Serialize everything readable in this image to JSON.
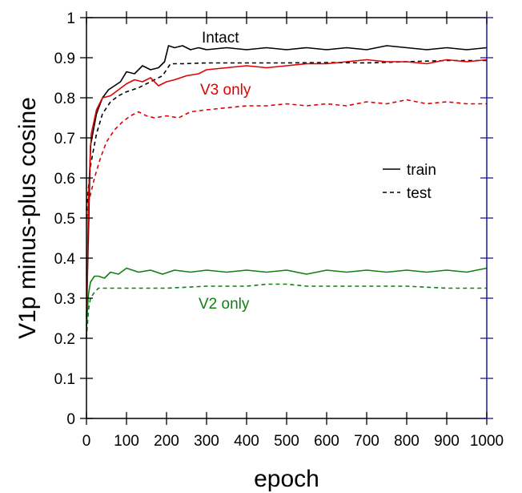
{
  "chart_data": {
    "type": "line",
    "xlabel": "epoch",
    "ylabel": "V1p minus-plus cosine",
    "xlim": [
      0,
      1000
    ],
    "ylim": [
      0,
      1
    ],
    "xticks": [
      "0",
      "100",
      "200",
      "300",
      "400",
      "500",
      "600",
      "700",
      "800",
      "900",
      "1000"
    ],
    "yticks": [
      "0",
      "0.1",
      "0.2",
      "0.3",
      "0.4",
      "0.5",
      "0.6",
      "0.7",
      "0.8",
      "0.9",
      "1"
    ],
    "grid": false,
    "legend": {
      "placement": "right",
      "entries": [
        {
          "label": "train",
          "style": "solid"
        },
        {
          "label": "test",
          "style": "dashed"
        }
      ]
    },
    "annotations": [
      {
        "text": "Intact",
        "color": "#000000"
      },
      {
        "text": "V3 only",
        "color": "#e00000"
      },
      {
        "text": "V2 only",
        "color": "#108010"
      }
    ],
    "series": [
      {
        "group": "Intact",
        "split": "train",
        "color": "#000000",
        "style": "solid",
        "x": [
          0,
          10,
          25,
          40,
          55,
          70,
          85,
          100,
          120,
          140,
          160,
          180,
          195,
          205,
          220,
          240,
          260,
          280,
          300,
          350,
          400,
          450,
          500,
          550,
          600,
          650,
          700,
          750,
          800,
          850,
          900,
          950,
          1000
        ],
        "y": [
          0.25,
          0.68,
          0.76,
          0.8,
          0.82,
          0.83,
          0.84,
          0.865,
          0.86,
          0.88,
          0.87,
          0.875,
          0.89,
          0.93,
          0.925,
          0.93,
          0.92,
          0.925,
          0.92,
          0.925,
          0.92,
          0.925,
          0.92,
          0.925,
          0.92,
          0.925,
          0.92,
          0.93,
          0.925,
          0.92,
          0.925,
          0.92,
          0.925
        ]
      },
      {
        "group": "Intact",
        "split": "test",
        "color": "#000000",
        "style": "dashed",
        "x": [
          0,
          10,
          25,
          40,
          60,
          80,
          100,
          130,
          160,
          190,
          210,
          240,
          300,
          400,
          500,
          600,
          700,
          800,
          900,
          1000
        ],
        "y": [
          0.52,
          0.63,
          0.71,
          0.76,
          0.79,
          0.805,
          0.815,
          0.825,
          0.84,
          0.855,
          0.885,
          0.885,
          0.887,
          0.887,
          0.887,
          0.888,
          0.887,
          0.89,
          0.893,
          0.893
        ]
      },
      {
        "group": "V3 only",
        "split": "train",
        "color": "#e00000",
        "style": "solid",
        "x": [
          0,
          5,
          12,
          25,
          40,
          60,
          80,
          100,
          120,
          140,
          160,
          180,
          200,
          220,
          250,
          280,
          300,
          350,
          400,
          450,
          500,
          550,
          600,
          650,
          700,
          750,
          800,
          850,
          900,
          950,
          1000
        ],
        "y": [
          0.2,
          0.55,
          0.71,
          0.77,
          0.8,
          0.805,
          0.82,
          0.835,
          0.845,
          0.84,
          0.85,
          0.83,
          0.84,
          0.845,
          0.855,
          0.86,
          0.87,
          0.875,
          0.88,
          0.875,
          0.88,
          0.885,
          0.885,
          0.89,
          0.895,
          0.89,
          0.89,
          0.885,
          0.895,
          0.89,
          0.895
        ]
      },
      {
        "group": "V3 only",
        "split": "test",
        "color": "#e00000",
        "style": "dashed",
        "x": [
          0,
          8,
          20,
          35,
          50,
          70,
          90,
          110,
          130,
          150,
          170,
          200,
          230,
          260,
          300,
          350,
          400,
          450,
          500,
          550,
          600,
          650,
          700,
          750,
          800,
          850,
          900,
          950,
          1000
        ],
        "y": [
          0.5,
          0.55,
          0.6,
          0.65,
          0.69,
          0.72,
          0.74,
          0.755,
          0.765,
          0.755,
          0.75,
          0.755,
          0.75,
          0.765,
          0.77,
          0.775,
          0.78,
          0.78,
          0.785,
          0.78,
          0.785,
          0.78,
          0.79,
          0.785,
          0.795,
          0.785,
          0.79,
          0.785,
          0.785
        ]
      },
      {
        "group": "V2 only",
        "split": "train",
        "color": "#108010",
        "style": "solid",
        "x": [
          0,
          5,
          10,
          20,
          30,
          45,
          60,
          80,
          100,
          130,
          160,
          190,
          220,
          260,
          300,
          350,
          400,
          450,
          500,
          550,
          600,
          650,
          700,
          750,
          800,
          850,
          900,
          950,
          1000
        ],
        "y": [
          0.23,
          0.31,
          0.34,
          0.355,
          0.355,
          0.35,
          0.365,
          0.36,
          0.375,
          0.365,
          0.37,
          0.36,
          0.37,
          0.365,
          0.37,
          0.365,
          0.37,
          0.365,
          0.37,
          0.36,
          0.37,
          0.365,
          0.37,
          0.365,
          0.37,
          0.365,
          0.37,
          0.365,
          0.375
        ]
      },
      {
        "group": "V2 only",
        "split": "test",
        "color": "#108010",
        "style": "dashed",
        "x": [
          0,
          5,
          10,
          20,
          30,
          50,
          100,
          200,
          300,
          400,
          450,
          500,
          550,
          600,
          700,
          800,
          900,
          1000
        ],
        "y": [
          0.2,
          0.27,
          0.3,
          0.315,
          0.325,
          0.325,
          0.325,
          0.325,
          0.33,
          0.33,
          0.335,
          0.335,
          0.33,
          0.33,
          0.33,
          0.33,
          0.325,
          0.325
        ]
      }
    ]
  }
}
